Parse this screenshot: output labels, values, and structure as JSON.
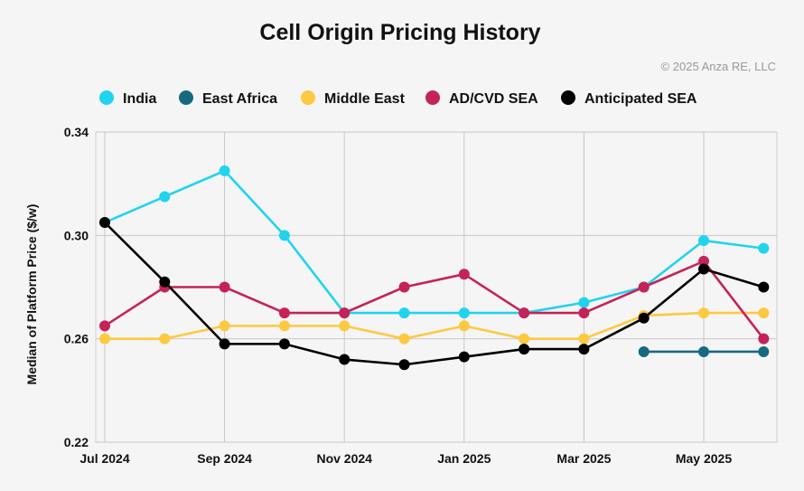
{
  "title": "Cell Origin Pricing History",
  "copyright": "© 2025 Anza RE, LLC",
  "chart_data": {
    "type": "line",
    "title": "Cell Origin Pricing History",
    "xlabel": "",
    "ylabel": "Median of Platform Price ($/w)",
    "ylim": [
      0.22,
      0.34
    ],
    "yticks": [
      0.22,
      0.26,
      0.3,
      0.34
    ],
    "ytick_labels": [
      "0.22",
      "0.26",
      "0.30",
      "0.34"
    ],
    "x": [
      "2024-07",
      "2024-08",
      "2024-09",
      "2024-10",
      "2024-11",
      "2024-12",
      "2025-01",
      "2025-02",
      "2025-03",
      "2025-04",
      "2025-05",
      "2025-06"
    ],
    "xtick_labels": [
      "Jul 2024",
      "Sep 2024",
      "Nov 2024",
      "Jan 2025",
      "Mar 2025",
      "May 2025"
    ],
    "xtick_positions": [
      "2024-07",
      "2024-09",
      "2024-11",
      "2025-01",
      "2025-03",
      "2025-05"
    ],
    "grid": true,
    "legend_position": "top",
    "series": [
      {
        "name": "India",
        "color": "#22d3ee",
        "values": [
          0.305,
          0.315,
          0.325,
          0.3,
          0.27,
          0.27,
          0.27,
          0.27,
          0.274,
          0.28,
          0.298,
          0.295
        ]
      },
      {
        "name": "East Africa",
        "color": "#166a80",
        "values": [
          null,
          null,
          null,
          null,
          null,
          null,
          null,
          null,
          null,
          0.255,
          0.255,
          0.255
        ]
      },
      {
        "name": "Middle East",
        "color": "#fdc940",
        "values": [
          0.26,
          0.26,
          0.265,
          0.265,
          0.265,
          0.26,
          0.265,
          0.26,
          0.26,
          0.269,
          0.27,
          0.27
        ]
      },
      {
        "name": "AD/CVD SEA",
        "color": "#c4235a",
        "values": [
          0.265,
          0.28,
          0.28,
          0.27,
          0.27,
          0.28,
          0.285,
          0.27,
          0.27,
          0.28,
          0.29,
          0.26
        ]
      },
      {
        "name": "Anticipated SEA",
        "color": "#000000",
        "values": [
          0.305,
          0.282,
          0.258,
          0.258,
          0.252,
          0.25,
          0.253,
          0.256,
          0.256,
          0.268,
          0.287,
          0.28
        ]
      }
    ]
  }
}
